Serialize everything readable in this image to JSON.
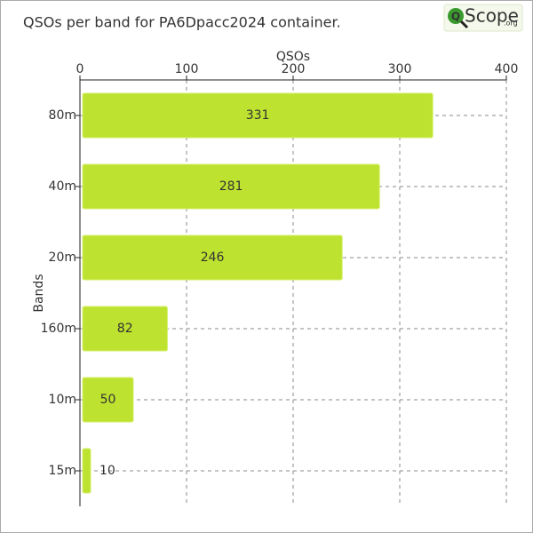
{
  "chart_data": {
    "type": "bar",
    "orientation": "horizontal",
    "title": "QSOs per band for PA6Dpacc2024 container.",
    "xlabel": "QSOs",
    "ylabel": "Bands",
    "categories": [
      "80m",
      "40m",
      "20m",
      "160m",
      "10m",
      "15m"
    ],
    "values": [
      331,
      281,
      246,
      82,
      50,
      10
    ],
    "color": "#bde22f",
    "xlim": [
      0,
      400
    ],
    "xticks": [
      0,
      100,
      200,
      300,
      400
    ],
    "grid": true
  },
  "logo": {
    "icon": "Q",
    "name": "Scope",
    "suffix": ".org"
  }
}
